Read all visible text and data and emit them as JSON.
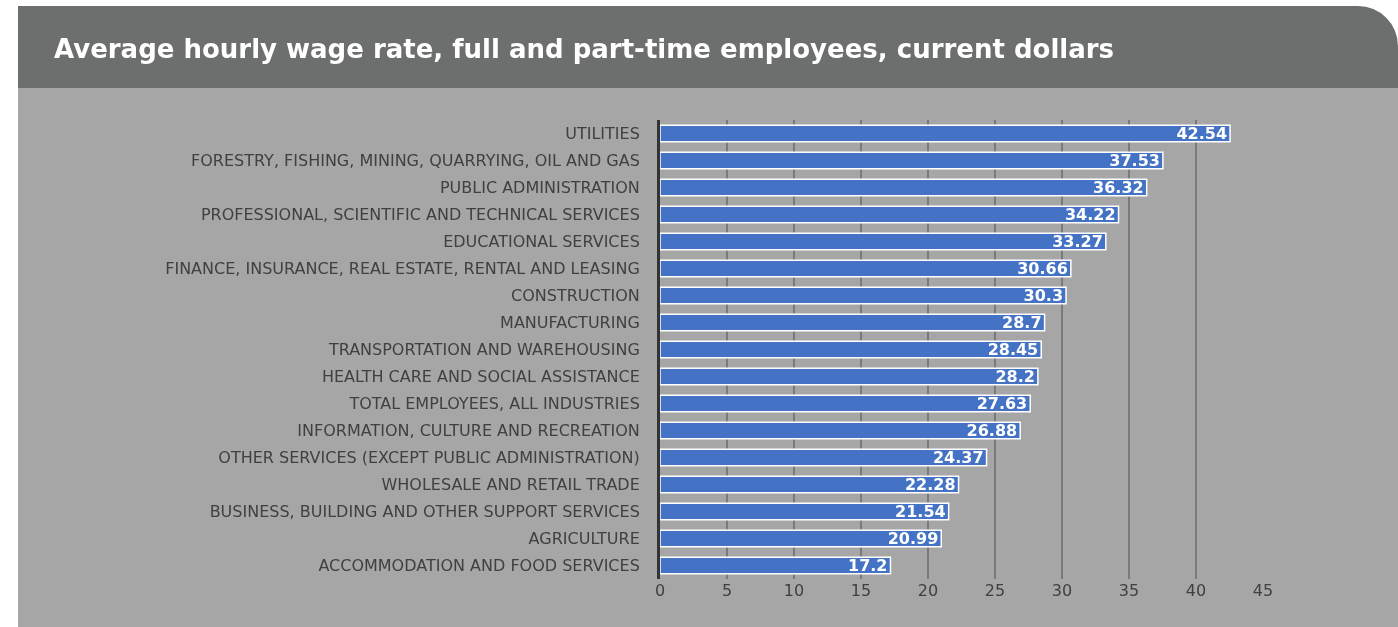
{
  "chart_data": {
    "type": "bar",
    "orientation": "horizontal",
    "title": "Average hourly wage rate, full and part-time employees, current dollars",
    "categories": [
      "UTILITIES",
      "FORESTRY, FISHING, MINING, QUARRYING, OIL AND GAS",
      "PUBLIC ADMINISTRATION",
      "PROFESSIONAL, SCIENTIFIC AND TECHNICAL SERVICES",
      "EDUCATIONAL SERVICES",
      "FINANCE, INSURANCE, REAL ESTATE, RENTAL AND LEASING",
      "CONSTRUCTION",
      "MANUFACTURING",
      "TRANSPORTATION AND WAREHOUSING",
      "HEALTH CARE AND SOCIAL ASSISTANCE",
      "TOTAL EMPLOYEES, ALL INDUSTRIES",
      "INFORMATION, CULTURE AND RECREATION",
      "OTHER SERVICES (EXCEPT PUBLIC ADMINISTRATION)",
      "WHOLESALE AND RETAIL TRADE",
      "BUSINESS, BUILDING AND OTHER SUPPORT SERVICES",
      "AGRICULTURE",
      "ACCOMMODATION AND FOOD SERVICES"
    ],
    "values": [
      42.54,
      37.53,
      36.32,
      34.22,
      33.27,
      30.66,
      30.3,
      28.7,
      28.45,
      28.2,
      27.63,
      26.88,
      24.37,
      22.28,
      21.54,
      20.99,
      17.2
    ],
    "color": "#4472c4",
    "xlim": [
      0,
      45
    ],
    "xticks": [
      0,
      5,
      10,
      15,
      20,
      25,
      30,
      35,
      40,
      45
    ],
    "grid": "x",
    "data_labels": true,
    "legend": false
  }
}
